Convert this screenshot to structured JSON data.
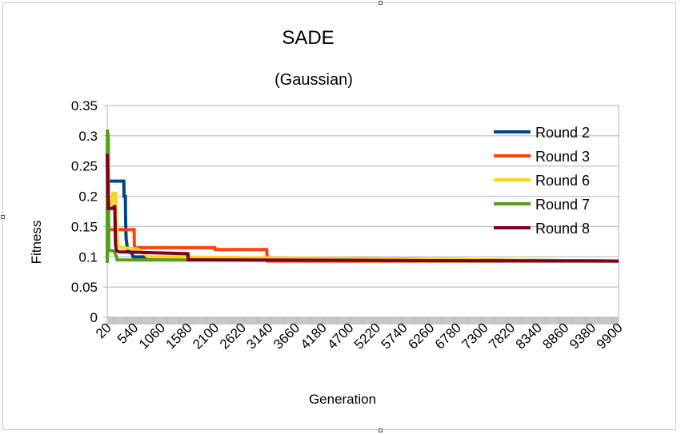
{
  "chart_data": {
    "type": "line",
    "title": "SADE",
    "subtitle": "(Gaussian)",
    "xlabel": "Generation",
    "ylabel": "Fitness",
    "ylim": [
      0,
      0.35
    ],
    "yticks": [
      "0",
      "0.05",
      "0.1",
      "0.15",
      "0.2",
      "0.25",
      "0.3",
      "0.35"
    ],
    "xlim": [
      20,
      9900
    ],
    "xticks": [
      "20",
      "540",
      "1060",
      "1580",
      "2100",
      "2620",
      "3140",
      "3660",
      "4180",
      "4700",
      "5220",
      "5740",
      "6260",
      "6780",
      "7300",
      "7820",
      "8340",
      "8860",
      "9380",
      "9900"
    ],
    "grid": true,
    "legend_position": "right",
    "series": [
      {
        "name": "Round 2",
        "color": "#004586",
        "points": [
          [
            20,
            0.225
          ],
          [
            340,
            0.225
          ],
          [
            345,
            0.2
          ],
          [
            370,
            0.2
          ],
          [
            375,
            0.16
          ],
          [
            385,
            0.13
          ],
          [
            400,
            0.12
          ],
          [
            420,
            0.11
          ],
          [
            500,
            0.105
          ],
          [
            520,
            0.1
          ],
          [
            9900,
            0.093
          ]
        ]
      },
      {
        "name": "Round 3",
        "color": "#ff420e",
        "points": [
          [
            20,
            0.145
          ],
          [
            540,
            0.145
          ],
          [
            545,
            0.115
          ],
          [
            2100,
            0.115
          ],
          [
            2105,
            0.112
          ],
          [
            3100,
            0.112
          ],
          [
            3110,
            0.1
          ],
          [
            3120,
            0.093
          ],
          [
            9900,
            0.093
          ]
        ]
      },
      {
        "name": "Round 6",
        "color": "#ffd320",
        "points": [
          [
            20,
            0.185
          ],
          [
            100,
            0.185
          ],
          [
            130,
            0.205
          ],
          [
            180,
            0.205
          ],
          [
            220,
            0.12
          ],
          [
            300,
            0.115
          ],
          [
            600,
            0.113
          ],
          [
            700,
            0.108
          ],
          [
            800,
            0.1
          ],
          [
            9900,
            0.093
          ]
        ]
      },
      {
        "name": "Round 7",
        "color": "#579d1c",
        "points": [
          [
            20,
            0.09
          ],
          [
            22,
            0.31
          ],
          [
            40,
            0.3
          ],
          [
            50,
            0.11
          ],
          [
            150,
            0.11
          ],
          [
            200,
            0.1
          ],
          [
            210,
            0.095
          ],
          [
            9900,
            0.093
          ]
        ]
      },
      {
        "name": "Round 8",
        "color": "#7e0021",
        "points": [
          [
            20,
            0.27
          ],
          [
            40,
            0.18
          ],
          [
            140,
            0.18
          ],
          [
            165,
            0.185
          ],
          [
            180,
            0.12
          ],
          [
            200,
            0.11
          ],
          [
            260,
            0.108
          ],
          [
            400,
            0.108
          ],
          [
            1580,
            0.105
          ],
          [
            1585,
            0.095
          ],
          [
            9900,
            0.093
          ]
        ]
      }
    ]
  }
}
